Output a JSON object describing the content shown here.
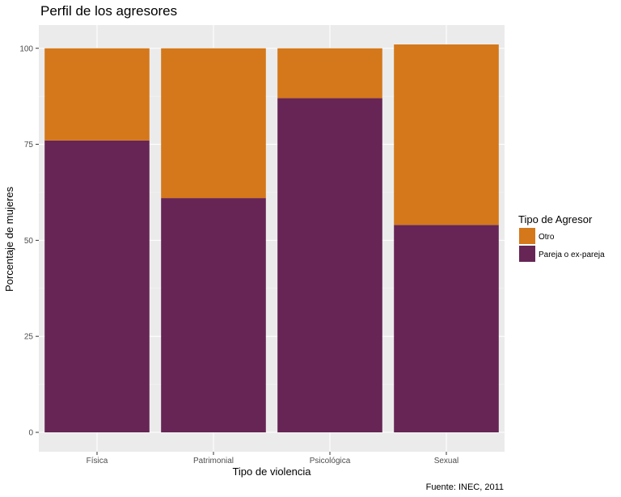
{
  "chart_data": {
    "type": "bar",
    "stacked": true,
    "title": "Perfil de los agresores",
    "xlabel": "Tipo de violencia",
    "ylabel": "Porcentaje de mujeres",
    "categories": [
      "Física",
      "Patrimonial",
      "Psicológica",
      "Sexual"
    ],
    "series": [
      {
        "name": "Pareja o ex-pareja",
        "color": "#662555",
        "values": [
          76,
          61,
          87,
          54
        ]
      },
      {
        "name": "Otro",
        "color": "#d4781b",
        "values": [
          24,
          39,
          13,
          47
        ]
      }
    ],
    "ylim": [
      0,
      101
    ],
    "yticks": [
      0,
      25,
      50,
      75,
      100
    ],
    "grid": true,
    "legend": {
      "title": "Tipo de Agresor",
      "position": "right",
      "order": [
        "Otro",
        "Pareja o ex-pareja"
      ]
    },
    "caption": "Fuente: INEC, 2011"
  }
}
